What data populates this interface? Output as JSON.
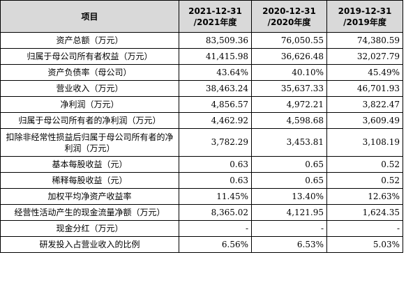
{
  "table": {
    "header": {
      "item": "项目",
      "periods": [
        {
          "line1": "2021-12-31",
          "line2": "/2021年度"
        },
        {
          "line1": "2020-12-31",
          "line2": "/2020年度"
        },
        {
          "line1": "2019-12-31",
          "line2": "/2019年度"
        }
      ]
    },
    "rows": [
      {
        "label": "资产总额（万元）",
        "values": [
          "83,509.36",
          "76,050.55",
          "74,380.59"
        ]
      },
      {
        "label": "归属于母公司所有者权益（万元）",
        "values": [
          "41,415.98",
          "36,626.48",
          "32,027.79"
        ]
      },
      {
        "label": "资产负债率（母公司）",
        "values": [
          "43.64%",
          "40.10%",
          "45.49%"
        ]
      },
      {
        "label": "营业收入（万元）",
        "values": [
          "38,463.24",
          "35,637.33",
          "46,701.93"
        ]
      },
      {
        "label": "净利润（万元）",
        "values": [
          "4,856.57",
          "4,972.21",
          "3,822.47"
        ]
      },
      {
        "label": "归属于母公司所有者的净利润（万元）",
        "values": [
          "4,462.92",
          "4,598.68",
          "3,609.49"
        ]
      },
      {
        "label": "扣除非经常性损益后归属于母公司所有者的净利润（万元）",
        "values": [
          "3,782.29",
          "3,453.81",
          "3,108.19"
        ]
      },
      {
        "label": "基本每股收益（元）",
        "values": [
          "0.63",
          "0.65",
          "0.52"
        ]
      },
      {
        "label": "稀释每股收益（元）",
        "values": [
          "0.63",
          "0.65",
          "0.52"
        ]
      },
      {
        "label": "加权平均净资产收益率",
        "values": [
          "11.45%",
          "13.40%",
          "12.63%"
        ]
      },
      {
        "label": "经营性活动产生的现金流量净额（万元）",
        "values": [
          "8,365.02",
          "4,121.95",
          "1,624.35"
        ]
      },
      {
        "label": "现金分红（万元）",
        "values": [
          "-",
          "-",
          "-"
        ]
      },
      {
        "label": "研发投入占营业收入的比例",
        "values": [
          "6.56%",
          "6.53%",
          "5.03%"
        ]
      }
    ]
  }
}
